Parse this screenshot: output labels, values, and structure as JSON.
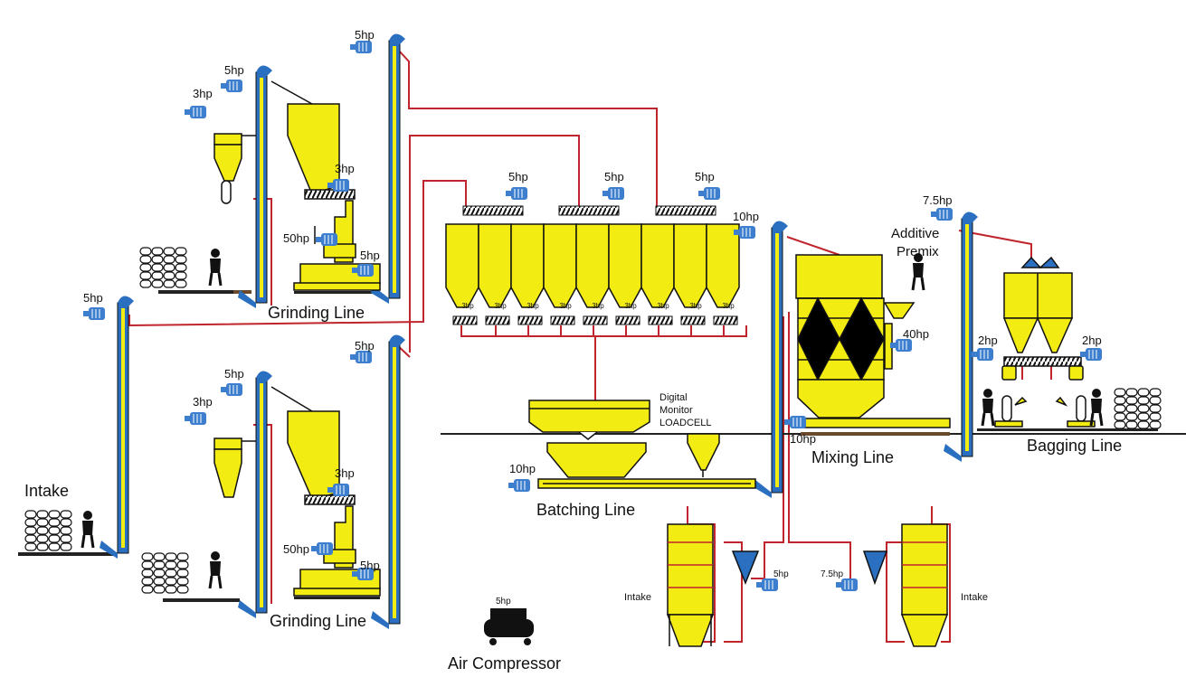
{
  "colors": {
    "equipment_yellow": "#f2ec12",
    "outline": "#111111",
    "elevator_blue": "#2a6fc0",
    "motor_blue": "#3d7fce",
    "pipe_red": "#c0242c",
    "floor": "#222222",
    "floor_brown": "#6b4a2b"
  },
  "icons": [
    "motor-icon",
    "worker-icon",
    "sack-stack-icon",
    "air-compressor-icon"
  ],
  "sections": {
    "intake_left": "Intake",
    "grinding_top": "Grinding Line",
    "grinding_bottom": "Grinding Line",
    "batching": "Batching Line",
    "mixing": "Mixing Line",
    "bagging": "Bagging Line",
    "air_compressor": "Air Compressor",
    "additive_line1": "Additive",
    "additive_line2": "Premix",
    "intake_silo_left": "Intake",
    "intake_silo_right": "Intake"
  },
  "loadcell": {
    "line1": "Digital",
    "line2": "Monitor",
    "line3": "LOADCELL"
  },
  "motors": {
    "intake_elevator": "5hp",
    "gt_elevator_a": "5hp",
    "gt_cyclone_fan": "3hp",
    "gt_elevator_b": "5hp",
    "gt_feeder": "3hp",
    "gt_mill": "50hp",
    "gt_screw": "5hp",
    "gb_elevator_a": "5hp",
    "gb_cyclone_fan": "3hp",
    "gb_elevator_b": "5hp",
    "gb_feeder": "3hp",
    "gb_mill": "50hp",
    "gb_screw": "5hp",
    "bin_conv_1": "5hp",
    "bin_conv_2": "5hp",
    "bin_conv_3": "5hp",
    "bin_feeders": [
      "3hp",
      "3hp",
      "3hp",
      "3hp",
      "3hp",
      "3hp",
      "3hp",
      "3hp",
      "3hp"
    ],
    "batching_screw": "10hp",
    "mixer_elevator": "10hp",
    "mixer_conveyor": "10hp",
    "mixer": "40hp",
    "bagging_elevator": "7.5hp",
    "bagging_left": "2hp",
    "bagging_right": "2hp",
    "silo_fan_left": "5hp",
    "silo_fan_right": "7.5hp",
    "compressor": "5hp"
  }
}
